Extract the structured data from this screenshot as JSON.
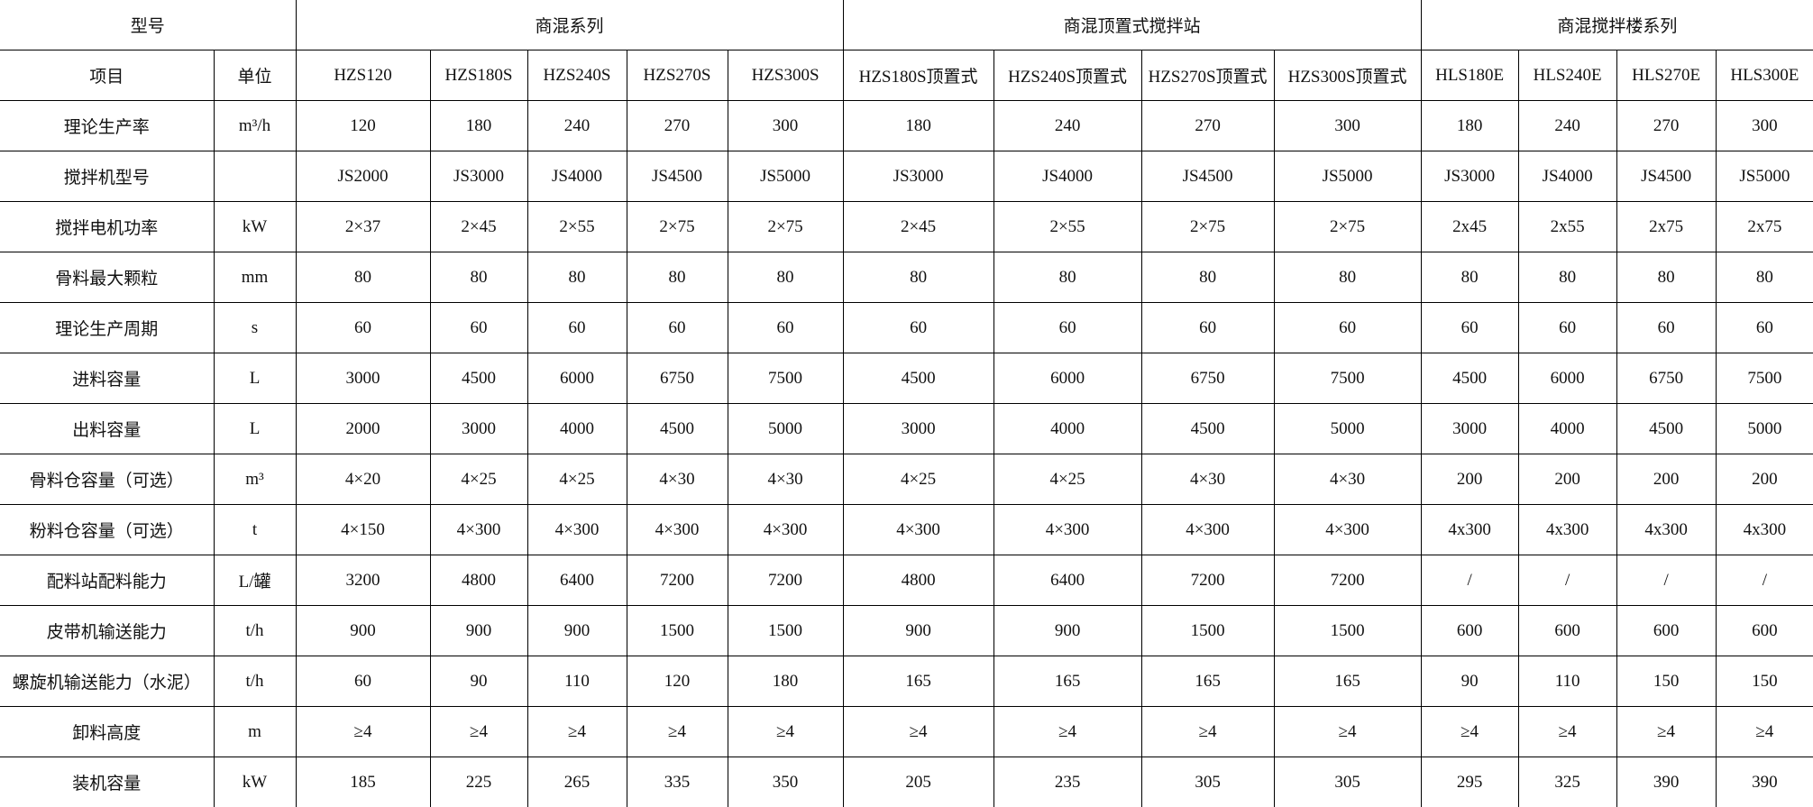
{
  "header": {
    "model_label": "型号",
    "groups": [
      "商混系列",
      "商混顶置式搅拌站",
      "商混搅拌楼系列"
    ],
    "item_label": "项目",
    "unit_label": "单位",
    "models": [
      "HZS120",
      "HZS180S",
      "HZS240S",
      "HZS270S",
      "HZS300S",
      "HZS180S顶置式",
      "HZS240S顶置式",
      "HZS270S顶置式",
      "HZS300S顶置式",
      "HLS180E",
      "HLS240E",
      "HLS270E",
      "HLS300E"
    ]
  },
  "rows": [
    {
      "item": "理论生产率",
      "unit": "m³/h",
      "values": [
        "120",
        "180",
        "240",
        "270",
        "300",
        "180",
        "240",
        "270",
        "300",
        "180",
        "240",
        "270",
        "300"
      ]
    },
    {
      "item": "搅拌机型号",
      "unit": "",
      "values": [
        "JS2000",
        "JS3000",
        "JS4000",
        "JS4500",
        "JS5000",
        "JS3000",
        "JS4000",
        "JS4500",
        "JS5000",
        "JS3000",
        "JS4000",
        "JS4500",
        "JS5000"
      ]
    },
    {
      "item": "搅拌电机功率",
      "unit": "kW",
      "values": [
        "2×37",
        "2×45",
        "2×55",
        "2×75",
        "2×75",
        "2×45",
        "2×55",
        "2×75",
        "2×75",
        "2x45",
        "2x55",
        "2x75",
        "2x75"
      ]
    },
    {
      "item": "骨料最大颗粒",
      "unit": "mm",
      "values": [
        "80",
        "80",
        "80",
        "80",
        "80",
        "80",
        "80",
        "80",
        "80",
        "80",
        "80",
        "80",
        "80"
      ]
    },
    {
      "item": "理论生产周期",
      "unit": "s",
      "values": [
        "60",
        "60",
        "60",
        "60",
        "60",
        "60",
        "60",
        "60",
        "60",
        "60",
        "60",
        "60",
        "60"
      ]
    },
    {
      "item": "进料容量",
      "unit": "L",
      "values": [
        "3000",
        "4500",
        "6000",
        "6750",
        "7500",
        "4500",
        "6000",
        "6750",
        "7500",
        "4500",
        "6000",
        "6750",
        "7500"
      ]
    },
    {
      "item": "出料容量",
      "unit": "L",
      "values": [
        "2000",
        "3000",
        "4000",
        "4500",
        "5000",
        "3000",
        "4000",
        "4500",
        "5000",
        "3000",
        "4000",
        "4500",
        "5000"
      ]
    },
    {
      "item": "骨料仓容量（可选）",
      "unit": "m³",
      "values": [
        "4×20",
        "4×25",
        "4×25",
        "4×30",
        "4×30",
        "4×25",
        "4×25",
        "4×30",
        "4×30",
        "200",
        "200",
        "200",
        "200"
      ]
    },
    {
      "item": "粉料仓容量（可选）",
      "unit": "t",
      "values": [
        "4×150",
        "4×300",
        "4×300",
        "4×300",
        "4×300",
        "4×300",
        "4×300",
        "4×300",
        "4×300",
        "4x300",
        "4x300",
        "4x300",
        "4x300"
      ]
    },
    {
      "item": "配料站配料能力",
      "unit": "L/罐",
      "values": [
        "3200",
        "4800",
        "6400",
        "7200",
        "7200",
        "4800",
        "6400",
        "7200",
        "7200",
        "/",
        "/",
        "/",
        "/"
      ]
    },
    {
      "item": "皮带机输送能力",
      "unit": "t/h",
      "values": [
        "900",
        "900",
        "900",
        "1500",
        "1500",
        "900",
        "900",
        "1500",
        "1500",
        "600",
        "600",
        "600",
        "600"
      ]
    },
    {
      "item": "螺旋机输送能力（水泥）",
      "unit": "t/h",
      "values": [
        "60",
        "90",
        "110",
        "120",
        "180",
        "165",
        "165",
        "165",
        "165",
        "90",
        "110",
        "150",
        "150"
      ]
    },
    {
      "item": "卸料高度",
      "unit": "m",
      "values": [
        "≥4",
        "≥4",
        "≥4",
        "≥4",
        "≥4",
        "≥4",
        "≥4",
        "≥4",
        "≥4",
        "≥4",
        "≥4",
        "≥4",
        "≥4"
      ]
    },
    {
      "item": "装机容量",
      "unit": "kW",
      "values": [
        "185",
        "225",
        "265",
        "335",
        "350",
        "205",
        "235",
        "305",
        "305",
        "295",
        "325",
        "390",
        "390"
      ]
    }
  ]
}
